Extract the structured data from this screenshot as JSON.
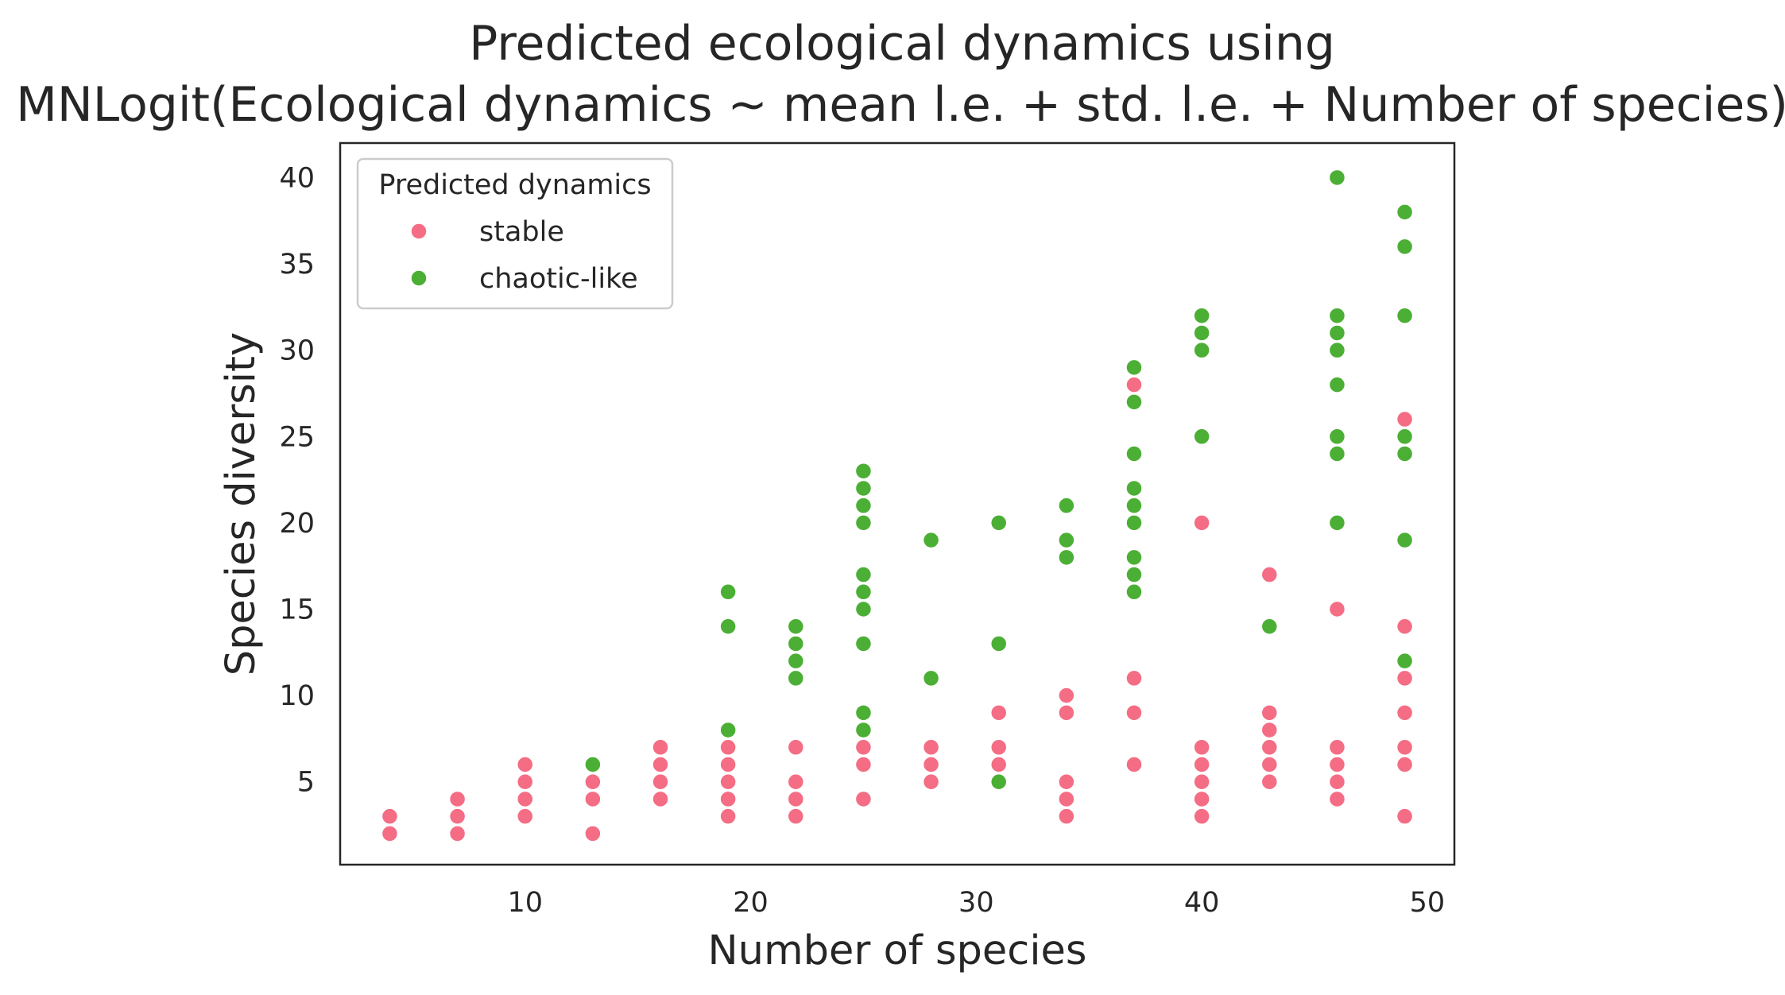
{
  "chart_data": {
    "type": "scatter",
    "title": [
      "Predicted ecological dynamics using",
      "MNLogit(Ecological dynamics ~ mean l.e. + std. l.e. + Number of species)"
    ],
    "xlabel": "Number of species",
    "ylabel": "Species diversity",
    "xlim": [
      1.8,
      51.2
    ],
    "ylim": [
      0.2,
      42.0
    ],
    "xticks": [
      10,
      20,
      30,
      40,
      50
    ],
    "yticks": [
      5,
      10,
      15,
      20,
      25,
      30,
      35,
      40
    ],
    "grid": false,
    "legend": {
      "title": "Predicted dynamics",
      "placement": "top-left"
    },
    "series": [
      {
        "name": "stable",
        "color": "#f46d84",
        "points": [
          [
            4,
            2
          ],
          [
            4,
            3
          ],
          [
            7,
            2
          ],
          [
            7,
            3
          ],
          [
            7,
            4
          ],
          [
            10,
            3
          ],
          [
            10,
            4
          ],
          [
            10,
            5
          ],
          [
            10,
            6
          ],
          [
            13,
            2
          ],
          [
            13,
            4
          ],
          [
            13,
            5
          ],
          [
            16,
            4
          ],
          [
            16,
            5
          ],
          [
            16,
            6
          ],
          [
            16,
            7
          ],
          [
            19,
            3
          ],
          [
            19,
            4
          ],
          [
            19,
            5
          ],
          [
            19,
            6
          ],
          [
            19,
            7
          ],
          [
            22,
            3
          ],
          [
            22,
            4
          ],
          [
            22,
            5
          ],
          [
            22,
            7
          ],
          [
            25,
            4
          ],
          [
            25,
            6
          ],
          [
            25,
            7
          ],
          [
            28,
            5
          ],
          [
            28,
            6
          ],
          [
            28,
            7
          ],
          [
            31,
            6
          ],
          [
            31,
            7
          ],
          [
            31,
            9
          ],
          [
            34,
            3
          ],
          [
            34,
            4
          ],
          [
            34,
            5
          ],
          [
            34,
            9
          ],
          [
            34,
            10
          ],
          [
            37,
            6
          ],
          [
            37,
            9
          ],
          [
            37,
            11
          ],
          [
            37,
            28
          ],
          [
            40,
            3
          ],
          [
            40,
            4
          ],
          [
            40,
            5
          ],
          [
            40,
            6
          ],
          [
            40,
            7
          ],
          [
            40,
            20
          ],
          [
            43,
            5
          ],
          [
            43,
            6
          ],
          [
            43,
            7
          ],
          [
            43,
            8
          ],
          [
            43,
            9
          ],
          [
            43,
            17
          ],
          [
            46,
            4
          ],
          [
            46,
            5
          ],
          [
            46,
            6
          ],
          [
            46,
            7
          ],
          [
            46,
            15
          ],
          [
            49,
            3
          ],
          [
            49,
            6
          ],
          [
            49,
            7
          ],
          [
            49,
            9
          ],
          [
            49,
            11
          ],
          [
            49,
            14
          ],
          [
            49,
            26
          ]
        ]
      },
      {
        "name": "chaotic-like",
        "color": "#4caf35",
        "points": [
          [
            13,
            6
          ],
          [
            19,
            8
          ],
          [
            19,
            14
          ],
          [
            19,
            16
          ],
          [
            22,
            11
          ],
          [
            22,
            12
          ],
          [
            22,
            13
          ],
          [
            22,
            14
          ],
          [
            25,
            8
          ],
          [
            25,
            9
          ],
          [
            25,
            13
          ],
          [
            25,
            15
          ],
          [
            25,
            16
          ],
          [
            25,
            17
          ],
          [
            25,
            20
          ],
          [
            25,
            21
          ],
          [
            25,
            22
          ],
          [
            25,
            23
          ],
          [
            28,
            11
          ],
          [
            28,
            19
          ],
          [
            31,
            5
          ],
          [
            31,
            13
          ],
          [
            31,
            20
          ],
          [
            34,
            18
          ],
          [
            34,
            19
          ],
          [
            34,
            21
          ],
          [
            37,
            16
          ],
          [
            37,
            17
          ],
          [
            37,
            18
          ],
          [
            37,
            20
          ],
          [
            37,
            21
          ],
          [
            37,
            22
          ],
          [
            37,
            24
          ],
          [
            37,
            27
          ],
          [
            37,
            29
          ],
          [
            40,
            25
          ],
          [
            40,
            30
          ],
          [
            40,
            31
          ],
          [
            40,
            32
          ],
          [
            43,
            14
          ],
          [
            46,
            20
          ],
          [
            46,
            24
          ],
          [
            46,
            25
          ],
          [
            46,
            28
          ],
          [
            46,
            30
          ],
          [
            46,
            31
          ],
          [
            46,
            32
          ],
          [
            46,
            40
          ],
          [
            49,
            12
          ],
          [
            49,
            19
          ],
          [
            49,
            24
          ],
          [
            49,
            25
          ],
          [
            49,
            32
          ],
          [
            49,
            36
          ],
          [
            49,
            38
          ]
        ]
      }
    ]
  }
}
